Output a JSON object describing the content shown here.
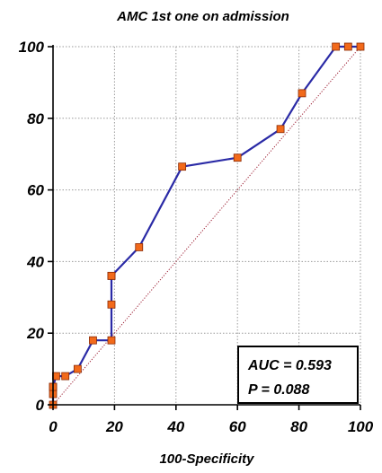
{
  "chart_data": {
    "type": "line",
    "title": "AMC 1st one on admission",
    "xlabel": "100-Specificity",
    "ylabel": "",
    "xlim": [
      0,
      100
    ],
    "ylim": [
      0,
      100
    ],
    "xticks": [
      0,
      20,
      40,
      60,
      80,
      100
    ],
    "yticks": [
      0,
      20,
      40,
      60,
      80,
      100
    ],
    "grid": true,
    "series": [
      {
        "type": "roc-curve",
        "color": "#2a2aa6",
        "marker_color": "#f26a1b",
        "x": [
          0,
          0,
          0,
          0,
          1,
          4,
          8,
          13,
          19,
          19,
          19,
          19,
          28,
          42,
          60,
          74,
          81,
          92,
          96,
          100
        ],
        "y": [
          0,
          3,
          5,
          5,
          8,
          8,
          10,
          18,
          18,
          28,
          36,
          36,
          44,
          66.5,
          69,
          77,
          87,
          100,
          100,
          100
        ]
      },
      {
        "type": "diagonal-reference",
        "color": "#9b1b30",
        "x": [
          0,
          100
        ],
        "y": [
          0,
          100
        ]
      }
    ],
    "annotation": {
      "auc_text": "AUC = 0.593",
      "p_text": "P = 0.088"
    }
  }
}
